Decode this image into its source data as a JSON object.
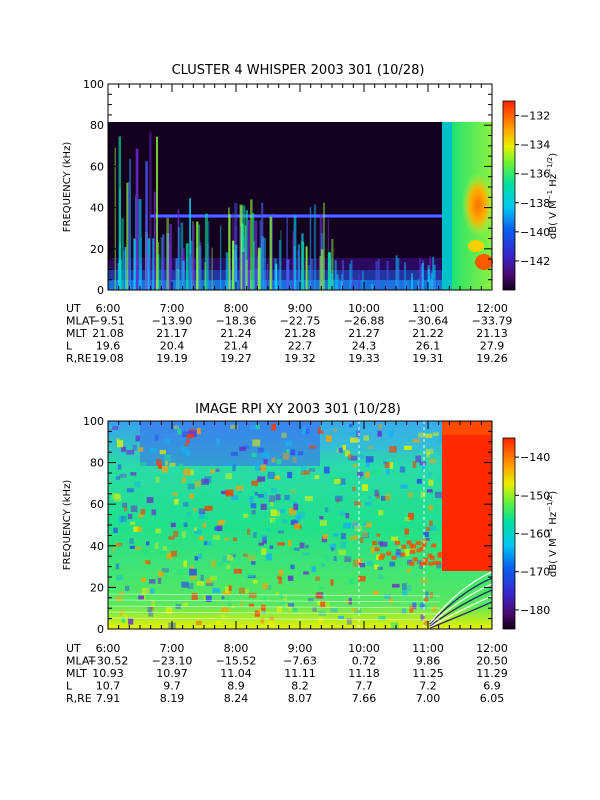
{
  "chart_data": [
    {
      "type": "heatmap",
      "title": "CLUSTER 4 WHISPER 2003 301 (10/28)",
      "ylabel": "FREQUENCY (kHz)",
      "ylim": [
        0,
        100
      ],
      "yticks": [
        0,
        20,
        40,
        60,
        80,
        100
      ],
      "data_ylim": [
        0,
        80
      ],
      "x_ticks": [
        "6:00",
        "7:00",
        "8:00",
        "9:00",
        "10:00",
        "11:00",
        "12:00"
      ],
      "colorbar": {
        "label": "dB( V M⁻¹ Hz⁻¹ᐟ²)",
        "label_text": "dB( V M",
        "label_sup1": "−1",
        "label_mid": " Hz",
        "label_sup2": "−1/2",
        "label_end": ")",
        "range": [
          -144,
          -131
        ],
        "ticks": [
          -132,
          -134,
          -136,
          -138,
          -140,
          -142
        ]
      },
      "ephemeris": [
        {
          "label": "UT",
          "values": [
            "6:00",
            "7:00",
            "8:00",
            "9:00",
            "10:00",
            "11:00",
            "12:00"
          ]
        },
        {
          "label": "MLAT",
          "values": [
            "-9.51",
            "-13.90",
            "-18.36",
            "-22.75",
            "-26.88",
            "-30.64",
            "-33.79"
          ]
        },
        {
          "label": "MLT",
          "values": [
            "21.08",
            "21.17",
            "21.24",
            "21.28",
            "21.27",
            "21.22",
            "21.13"
          ]
        },
        {
          "label": "L",
          "values": [
            "19.6",
            "20.4",
            "21.4",
            "22.7",
            "24.3",
            "26.1",
            "27.9"
          ]
        },
        {
          "label": "R,RE",
          "values": [
            "19.08",
            "19.19",
            "19.27",
            "19.32",
            "19.33",
            "19.31",
            "19.26"
          ]
        }
      ]
    },
    {
      "type": "heatmap",
      "title": "IMAGE RPI XY 2003 301 (10/28)",
      "ylabel": "FREQUENCY (kHz)",
      "ylim": [
        0,
        100
      ],
      "yticks": [
        0,
        20,
        40,
        60,
        80,
        100
      ],
      "x_ticks": [
        "6:00",
        "7:00",
        "8:00",
        "9:00",
        "10:00",
        "11:00",
        "12:00"
      ],
      "colorbar": {
        "label_text": "dB( V M",
        "label_sup1": "−1",
        "label_mid": " Hz",
        "label_sup2": "−1/2",
        "label_end": ")",
        "range": [
          -185,
          -135
        ],
        "ticks": [
          -140,
          -150,
          -160,
          -170,
          -180
        ]
      },
      "ephemeris": [
        {
          "label": "UT",
          "values": [
            "6:00",
            "7:00",
            "8:00",
            "9:00",
            "10:00",
            "11:00",
            "12:00"
          ]
        },
        {
          "label": "MLAT",
          "values": [
            "-30.52",
            "-23.10",
            "-15.52",
            "-7.63",
            "0.72",
            "9.86",
            "20.50"
          ]
        },
        {
          "label": "MLT",
          "values": [
            "10.93",
            "10.97",
            "11.04",
            "11.11",
            "11.18",
            "11.25",
            "11.29"
          ]
        },
        {
          "label": "L",
          "values": [
            "10.7",
            "9.7",
            "8.9",
            "8.2",
            "7.7",
            "7.2",
            "6.9"
          ]
        },
        {
          "label": "R,RE",
          "values": [
            "7.91",
            "8.19",
            "8.24",
            "8.07",
            "7.66",
            "7.00",
            "6.05"
          ]
        }
      ]
    }
  ]
}
